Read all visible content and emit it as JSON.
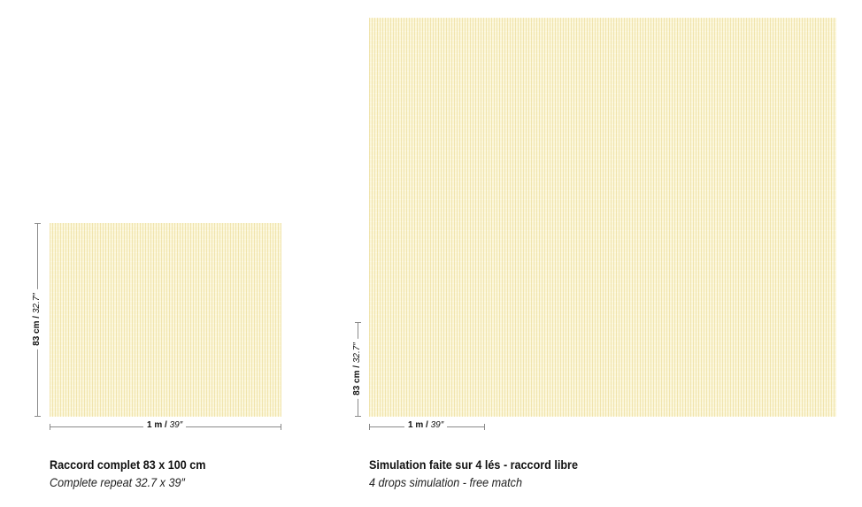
{
  "left_panel": {
    "height_label_main": "83 cm",
    "height_label_sep": " / ",
    "height_label_alt": "32.7″",
    "width_label_main": "1 m",
    "width_label_sep": " / ",
    "width_label_alt": "39″",
    "caption_title": "Raccord complet 83 x 100 cm",
    "caption_subtitle": "Complete repeat 32.7 x 39″"
  },
  "right_panel": {
    "height_label_main": "83 cm",
    "height_label_sep": " / ",
    "height_label_alt": "32.7″",
    "width_label_main": "1 m",
    "width_label_sep": " / ",
    "width_label_alt": "39″",
    "caption_title": "Simulation faite sur 4 lés - raccord libre",
    "caption_subtitle": "4 drops simulation - free match"
  },
  "colors": {
    "swatch_base": "#fbf6d8",
    "swatch_stripe": "#e8d68c",
    "dimension_line": "#8a8a8a"
  }
}
